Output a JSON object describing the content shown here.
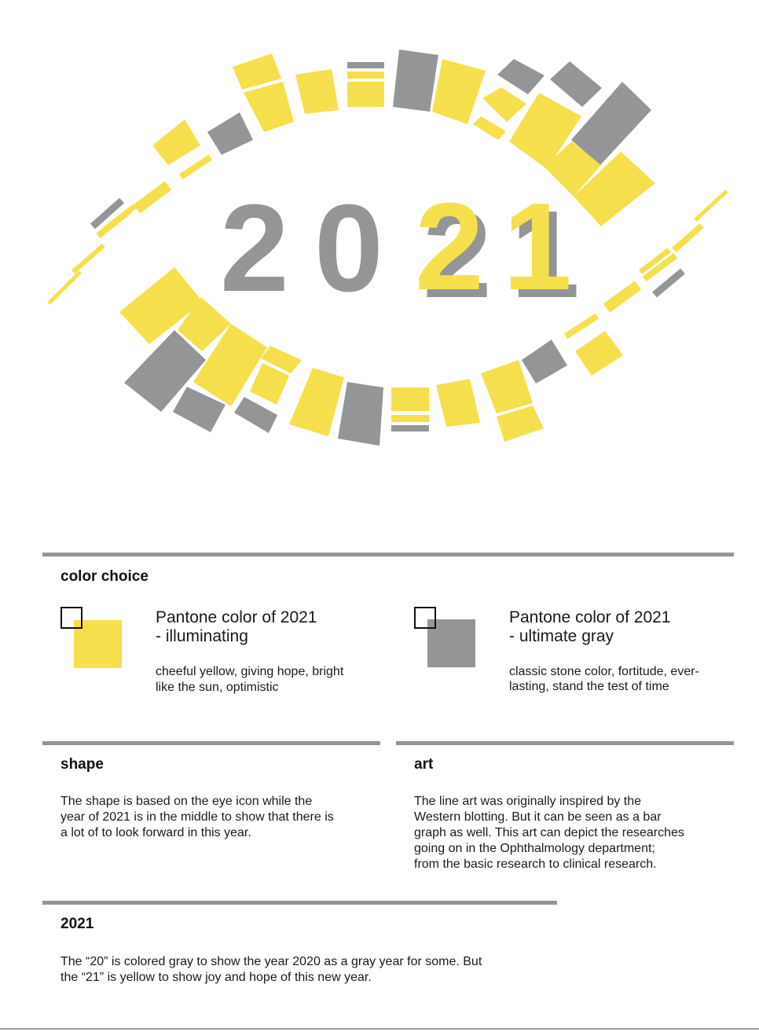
{
  "artwork": {
    "digits_gray": [
      "2",
      "0"
    ],
    "digits_yellow": [
      "2",
      "1"
    ],
    "colors": {
      "yellow": "#F5DF4D",
      "gray": "#939597",
      "shadow": "#939597"
    }
  },
  "color_choice": {
    "heading": "color choice",
    "left": {
      "title_line1": "Pantone color of 2021",
      "title_line2": "- illuminating",
      "desc_line1": "cheeful yellow, giving hope, bright",
      "desc_line2": "like the sun, optimistic",
      "swatch_color": "#F5DF4D"
    },
    "right": {
      "title_line1": "Pantone color of 2021",
      "title_line2": "- ultimate gray",
      "desc_line1": "classic stone color, fortitude, ever-",
      "desc_line2": "lasting, stand the test of time",
      "swatch_color": "#939597"
    }
  },
  "shape": {
    "heading": "shape",
    "lines": [
      "The shape is based on the eye icon while the",
      "year of 2021 is in the middle to show that there is",
      "a lot of to look forward in this year."
    ]
  },
  "art": {
    "heading": "art",
    "lines": [
      "The line art was originally inspired by the",
      "Western blotting. But it can be seen as a bar",
      "graph as well. This art can depict the researches",
      "going on in the Ophthalmology department;",
      "from the basic research to clinical research."
    ]
  },
  "year": {
    "heading": "2021",
    "lines": [
      "The “20” is colored gray to show the year 2020 as a gray year for some. But",
      "the “21” is yellow to show joy and hope of this new year."
    ]
  }
}
